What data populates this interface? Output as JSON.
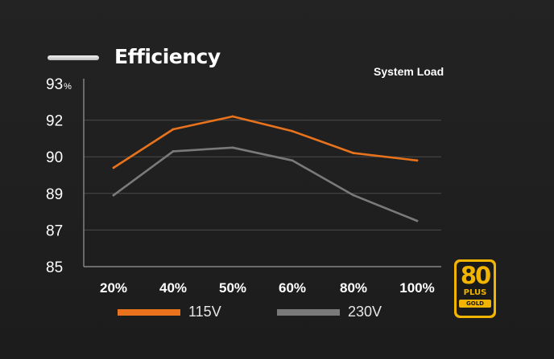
{
  "header": {
    "title": "Efficiency",
    "subtitle": "System Load"
  },
  "chart_data": {
    "type": "line",
    "title": "Efficiency",
    "xlabel": "System Load",
    "ylabel": "",
    "y_unit": "%",
    "categories": [
      "20%",
      "40%",
      "50%",
      "60%",
      "80%",
      "100%"
    ],
    "y_ticks": [
      85,
      87,
      89,
      90,
      92,
      93
    ],
    "grid": "horizontal",
    "legend_placement": "bottom",
    "series": [
      {
        "name": "115V",
        "color": "#e8731c",
        "values": [
          89.7,
          91.5,
          92.1,
          91.4,
          90.2,
          89.9
        ]
      },
      {
        "name": "230V",
        "color": "#7a7a7a",
        "values": [
          88.9,
          90.3,
          90.5,
          89.9,
          88.9,
          87.5
        ]
      }
    ]
  },
  "badge": {
    "number": "80",
    "plus": "PLUS",
    "tier": "GOLD",
    "color": "#f1b400"
  }
}
